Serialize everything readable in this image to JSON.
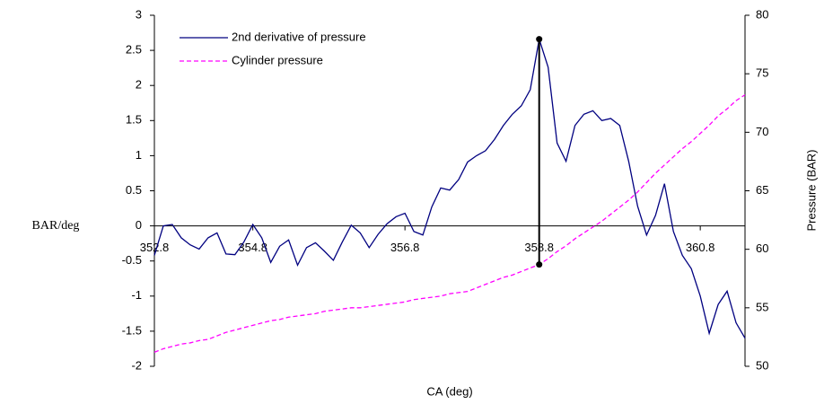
{
  "chart_data": {
    "type": "line",
    "ylabel": "BAR/deg",
    "y2label": "Pressure (BAR)",
    "xlabel": "CA (deg)",
    "categories": [
      "352.8",
      null,
      null,
      null,
      null,
      null,
      null,
      null,
      null,
      null,
      null,
      "354.8",
      null,
      null,
      null,
      null,
      null,
      null,
      null,
      null,
      null,
      null,
      null,
      null,
      null,
      null,
      null,
      null,
      "356.8",
      null,
      null,
      null,
      null,
      null,
      null,
      null,
      null,
      null,
      null,
      null,
      null,
      null,
      null,
      "358.8",
      null,
      null,
      null,
      null,
      null,
      null,
      null,
      null,
      null,
      null,
      null,
      null,
      null,
      null,
      null,
      null,
      null,
      "360.8",
      null,
      null,
      null,
      null,
      null
    ],
    "series": [
      {
        "name": "2nd derivative of pressure",
        "color": "#000080",
        "line_style": "solid",
        "values": [
          -0.42,
          0.0,
          0.02,
          -0.17,
          -0.27,
          -0.33,
          -0.17,
          -0.1,
          -0.4,
          -0.41,
          -0.23,
          0.02,
          -0.17,
          -0.52,
          -0.29,
          -0.2,
          -0.56,
          -0.31,
          -0.24,
          -0.36,
          -0.49,
          -0.23,
          0.01,
          -0.1,
          -0.31,
          -0.12,
          0.03,
          0.13,
          0.18,
          -0.08,
          -0.13,
          0.27,
          0.54,
          0.51,
          0.66,
          0.91,
          1.0,
          1.07,
          1.23,
          1.43,
          1.59,
          1.71,
          1.94,
          2.66,
          2.26,
          1.18,
          0.92,
          1.43,
          1.59,
          1.64,
          1.5,
          1.53,
          1.43,
          0.92,
          0.28,
          -0.13,
          0.15,
          0.6,
          -0.08,
          -0.42,
          -0.61,
          -1.0,
          -1.53,
          -1.12,
          -0.93,
          -1.38,
          -1.6
        ]
      },
      {
        "name": "Cylinder pressure",
        "color": "#ff00ff",
        "line_style": "dashed",
        "axis": "y2",
        "values": [
          51.2,
          51.5,
          51.7,
          51.9,
          52.0,
          52.2,
          52.3,
          52.6,
          52.9,
          53.1,
          53.3,
          53.5,
          53.7,
          53.9,
          54.0,
          54.2,
          54.3,
          54.4,
          54.5,
          54.7,
          54.8,
          54.9,
          55.0,
          55.0,
          55.1,
          55.2,
          55.3,
          55.4,
          55.5,
          55.7,
          55.8,
          55.9,
          56.0,
          56.2,
          56.3,
          56.4,
          56.7,
          57.0,
          57.3,
          57.6,
          57.8,
          58.1,
          58.4,
          58.7,
          59.2,
          59.8,
          60.3,
          60.9,
          61.4,
          61.9,
          62.4,
          63.0,
          63.6,
          64.2,
          64.9,
          65.7,
          66.5,
          67.2,
          67.9,
          68.6,
          69.2,
          69.9,
          70.6,
          71.4,
          72.0,
          72.7,
          73.2
        ]
      }
    ],
    "ylim": [
      -2,
      3
    ],
    "yticks": [
      -2,
      -1.5,
      -1,
      -0.5,
      0,
      0.5,
      1,
      1.5,
      2,
      2.5,
      3
    ],
    "y2lim": [
      50,
      80
    ],
    "y2ticks": [
      50,
      55,
      60,
      65,
      70,
      75,
      80
    ],
    "grid": false,
    "legend": "upper left"
  }
}
